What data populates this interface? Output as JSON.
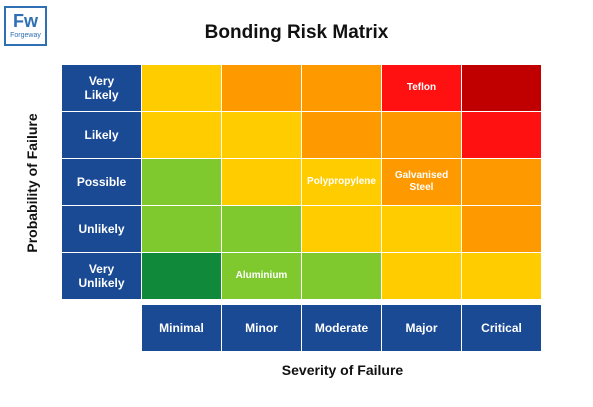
{
  "logo": {
    "mark": "Fw",
    "name": "Forgeway"
  },
  "title": "Bonding Risk Matrix",
  "y_axis_label": "Probability of Failure",
  "x_axis_label": "Severity of Failure",
  "probability_levels": [
    "Very\nLikely",
    "Likely",
    "Possible",
    "Unlikely",
    "Very\nUnlikely"
  ],
  "severity_levels": [
    "Minimal",
    "Minor",
    "Moderate",
    "Major",
    "Critical"
  ],
  "matrix": [
    [
      {
        "color": "#ffcc00",
        "text": ""
      },
      {
        "color": "#ff9900",
        "text": ""
      },
      {
        "color": "#ff9900",
        "text": ""
      },
      {
        "color": "#ff1111",
        "text": "Teflon"
      },
      {
        "color": "#c00000",
        "text": ""
      }
    ],
    [
      {
        "color": "#ffcc00",
        "text": ""
      },
      {
        "color": "#ffcc00",
        "text": ""
      },
      {
        "color": "#ff9900",
        "text": ""
      },
      {
        "color": "#ff9900",
        "text": ""
      },
      {
        "color": "#ff1111",
        "text": ""
      }
    ],
    [
      {
        "color": "#7fc92f",
        "text": ""
      },
      {
        "color": "#ffcc00",
        "text": ""
      },
      {
        "color": "#ffcc00",
        "text": "Polypropylene"
      },
      {
        "color": "#ff9900",
        "text": "Galvanised\nSteel"
      },
      {
        "color": "#ff9900",
        "text": ""
      }
    ],
    [
      {
        "color": "#7fc92f",
        "text": ""
      },
      {
        "color": "#7fc92f",
        "text": ""
      },
      {
        "color": "#ffcc00",
        "text": ""
      },
      {
        "color": "#ffcc00",
        "text": ""
      },
      {
        "color": "#ff9900",
        "text": ""
      }
    ],
    [
      {
        "color": "#108a3a",
        "text": ""
      },
      {
        "color": "#7fc92f",
        "text": "Aluminium"
      },
      {
        "color": "#7fc92f",
        "text": ""
      },
      {
        "color": "#ffcc00",
        "text": ""
      },
      {
        "color": "#ffcc00",
        "text": ""
      }
    ]
  ],
  "label_color": "#1a4a94"
}
